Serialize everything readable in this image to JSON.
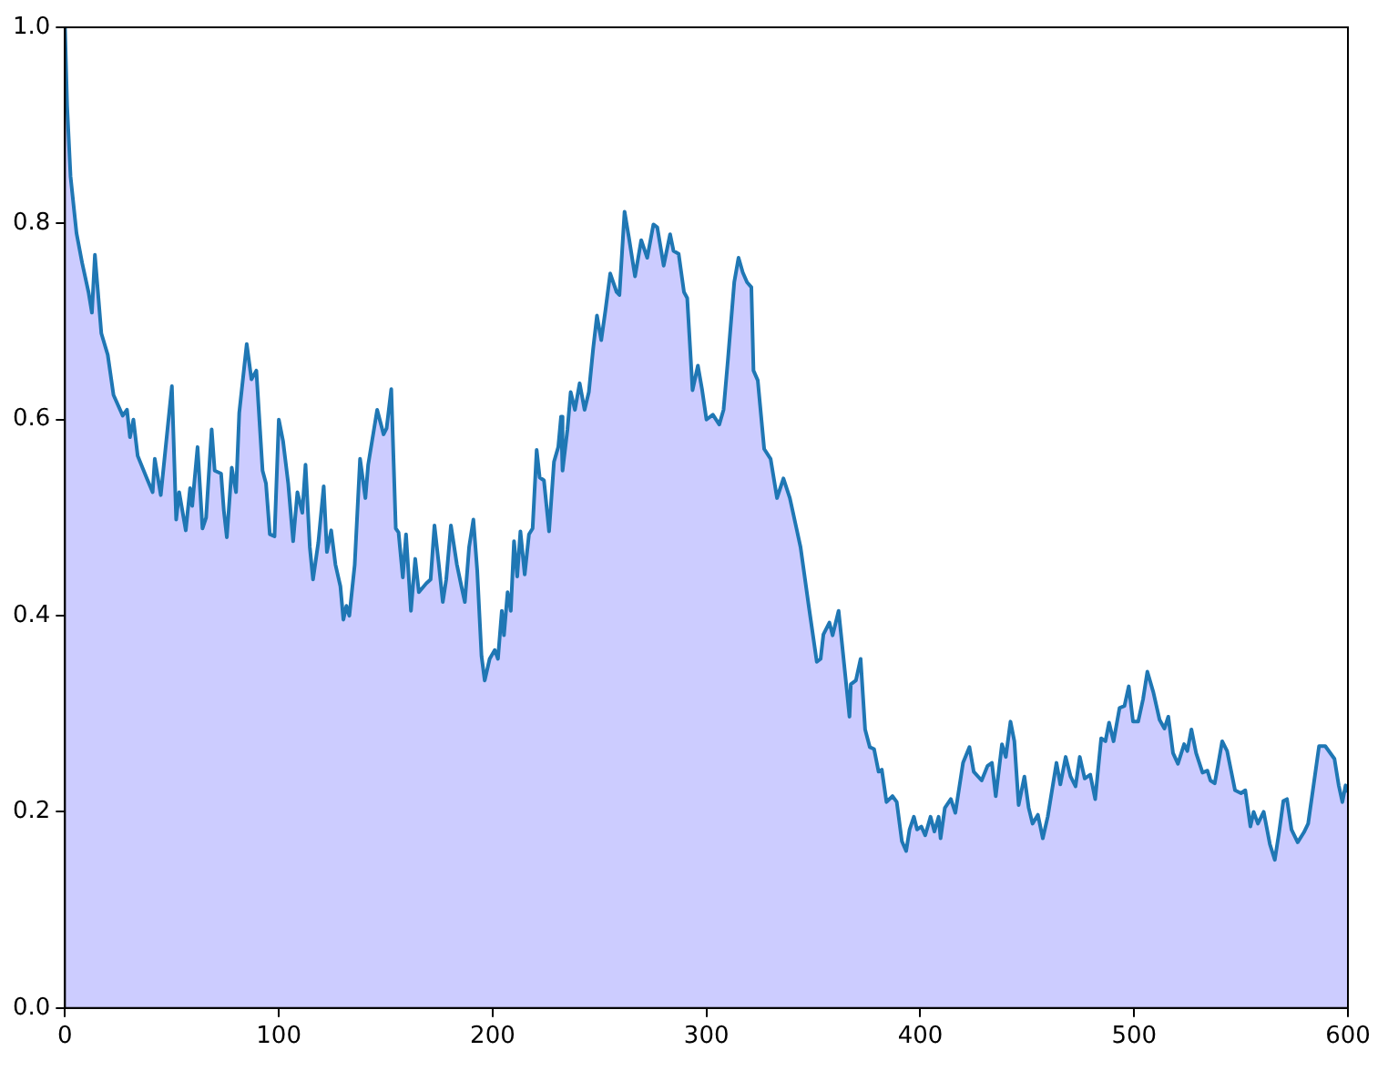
{
  "chart_data": {
    "type": "area",
    "xlim": [
      0,
      600
    ],
    "ylim": [
      0,
      1
    ],
    "xticks": [
      0,
      100,
      200,
      300,
      400,
      500,
      600
    ],
    "yticks": [
      {
        "value": 0,
        "label": "0.0"
      },
      {
        "value": 0.2,
        "label": "0.2"
      },
      {
        "value": 0.4,
        "label": "0.4"
      },
      {
        "value": 0.6,
        "label": "0.6"
      },
      {
        "value": 0.8,
        "label": "0.8"
      },
      {
        "value": 1,
        "label": "1.0"
      }
    ],
    "grid": false,
    "legend": false,
    "series": [
      {
        "color": "#1f77b4",
        "x": [
          0,
          1,
          2.6,
          5.4,
          8,
          11,
          12.6,
          14,
          17,
          20,
          22.7,
          27,
          29,
          30.4,
          32,
          34,
          38.5,
          41,
          42,
          44.8,
          50,
          52,
          53.4,
          56.5,
          58.5,
          59.5,
          62,
          64.3,
          66,
          68.6,
          70,
          73,
          74.3,
          75.7,
          78,
          80,
          81.5,
          85,
          87.2,
          89.5,
          92.4,
          94,
          95.8,
          98,
          100,
          102,
          104.4,
          106.7,
          108.7,
          111,
          112.5,
          114.5,
          116,
          118.5,
          121,
          122.5,
          124.5,
          126.5,
          128.8,
          130.2,
          131.6,
          133,
          135.5,
          138,
          140.5,
          141.8,
          146,
          149,
          150.4,
          152.6,
          154.7,
          156,
          158,
          159.5,
          161.8,
          163.8,
          165.5,
          169,
          171,
          172.8,
          174.7,
          176.7,
          178.3,
          180.5,
          183.3,
          185.4,
          187,
          189,
          191,
          192.8,
          194.8,
          196.3,
          198.6,
          201,
          202.5,
          204.3,
          205.3,
          207,
          208.5,
          210,
          211.5,
          213,
          215,
          217,
          218.7,
          220.6,
          222,
          224,
          226.4,
          228.7,
          230.7,
          232,
          232.7,
          235,
          236.5,
          238.5,
          240.7,
          243,
          245,
          247,
          248.8,
          250.8,
          252.8,
          255,
          258,
          259.3,
          261.7,
          263.7,
          266.6,
          269.5,
          272.3,
          275.2,
          277,
          280,
          283,
          284.6,
          287,
          289.5,
          291,
          293.5,
          296,
          298,
          300,
          303,
          306,
          308,
          310,
          313,
          315,
          317,
          319,
          321,
          322,
          324,
          327,
          330,
          333,
          336,
          339,
          342,
          344,
          347.9,
          351.6,
          353.4,
          354.7,
          357.5,
          359,
          361.8,
          363,
          365.6,
          366.9,
          367.5,
          369.9,
          372.1,
          374.2,
          376.4,
          378.4,
          380.5,
          382,
          384.2,
          387,
          389,
          391.4,
          393.4,
          395,
          397,
          398.5,
          400.5,
          402.3,
          404.8,
          406.6,
          408.6,
          409.5,
          411.5,
          414.3,
          416.4,
          420,
          423,
          425,
          428.7,
          431.5,
          433.5,
          435.3,
          438.2,
          440,
          442.2,
          444,
          446,
          448.7,
          450.7,
          452.5,
          455,
          457.3,
          459.6,
          463.7,
          465.5,
          468,
          470.3,
          472.6,
          474.6,
          476.9,
          479.5,
          481.8,
          484.6,
          486.6,
          488.3,
          490.4,
          493.2,
          495.5,
          497.5,
          499.5,
          501.9,
          504.2,
          506.2,
          509,
          511.9,
          514.2,
          516,
          518.2,
          520.5,
          523.4,
          524.9,
          526.8,
          529,
          532,
          534.3,
          535.7,
          537.7,
          539.2,
          541.2,
          543.5,
          547.2,
          550,
          552,
          554.4,
          555.9,
          557.9,
          560.6,
          563.5,
          565.8,
          567.8,
          569.8,
          571.5,
          573.6,
          576.5,
          579.4,
          581.4,
          583.6,
          586.5,
          589.4,
          593.7,
          595.7,
          597.4,
          598.9,
          600
        ],
        "values": [
          1.0,
          0.92,
          0.848,
          0.79,
          0.76,
          0.73,
          0.709,
          0.768,
          0.688,
          0.666,
          0.625,
          0.604,
          0.61,
          0.582,
          0.6,
          0.563,
          0.539,
          0.526,
          0.56,
          0.523,
          0.634,
          0.498,
          0.526,
          0.487,
          0.53,
          0.512,
          0.572,
          0.489,
          0.5,
          0.59,
          0.548,
          0.545,
          0.507,
          0.48,
          0.551,
          0.526,
          0.607,
          0.677,
          0.641,
          0.65,
          0.548,
          0.535,
          0.483,
          0.481,
          0.6,
          0.578,
          0.535,
          0.476,
          0.526,
          0.505,
          0.554,
          0.47,
          0.437,
          0.475,
          0.532,
          0.465,
          0.487,
          0.452,
          0.43,
          0.396,
          0.41,
          0.4,
          0.452,
          0.56,
          0.52,
          0.554,
          0.61,
          0.585,
          0.591,
          0.631,
          0.489,
          0.485,
          0.439,
          0.483,
          0.405,
          0.458,
          0.424,
          0.433,
          0.437,
          0.492,
          0.455,
          0.414,
          0.437,
          0.492,
          0.452,
          0.43,
          0.414,
          0.47,
          0.498,
          0.446,
          0.359,
          0.334,
          0.356,
          0.365,
          0.356,
          0.405,
          0.38,
          0.424,
          0.405,
          0.476,
          0.44,
          0.486,
          0.442,
          0.483,
          0.489,
          0.569,
          0.541,
          0.538,
          0.486,
          0.557,
          0.572,
          0.603,
          0.548,
          0.59,
          0.628,
          0.61,
          0.637,
          0.61,
          0.628,
          0.672,
          0.706,
          0.681,
          0.712,
          0.749,
          0.73,
          0.727,
          0.812,
          0.786,
          0.746,
          0.783,
          0.765,
          0.799,
          0.796,
          0.757,
          0.789,
          0.772,
          0.769,
          0.73,
          0.724,
          0.63,
          0.655,
          0.63,
          0.6,
          0.605,
          0.595,
          0.61,
          0.66,
          0.74,
          0.765,
          0.75,
          0.74,
          0.735,
          0.65,
          0.64,
          0.57,
          0.56,
          0.52,
          0.54,
          0.52,
          0.49,
          0.47,
          0.409,
          0.353,
          0.356,
          0.381,
          0.393,
          0.38,
          0.405,
          0.38,
          0.325,
          0.297,
          0.33,
          0.334,
          0.356,
          0.284,
          0.266,
          0.264,
          0.241,
          0.243,
          0.21,
          0.216,
          0.21,
          0.17,
          0.16,
          0.182,
          0.195,
          0.182,
          0.185,
          0.176,
          0.195,
          0.18,
          0.195,
          0.173,
          0.204,
          0.213,
          0.199,
          0.25,
          0.266,
          0.241,
          0.232,
          0.247,
          0.25,
          0.216,
          0.269,
          0.256,
          0.292,
          0.272,
          0.207,
          0.236,
          0.204,
          0.188,
          0.197,
          0.173,
          0.195,
          0.25,
          0.228,
          0.256,
          0.236,
          0.226,
          0.256,
          0.234,
          0.238,
          0.213,
          0.275,
          0.272,
          0.291,
          0.272,
          0.306,
          0.308,
          0.328,
          0.292,
          0.292,
          0.315,
          0.343,
          0.322,
          0.294,
          0.285,
          0.297,
          0.26,
          0.249,
          0.269,
          0.262,
          0.284,
          0.26,
          0.24,
          0.242,
          0.232,
          0.229,
          0.247,
          0.272,
          0.262,
          0.222,
          0.219,
          0.222,
          0.185,
          0.2,
          0.188,
          0.2,
          0.167,
          0.151,
          0.179,
          0.211,
          0.213,
          0.182,
          0.169,
          0.179,
          0.188,
          0.222,
          0.267,
          0.267,
          0.254,
          0.227,
          0.21,
          0.227,
          0.22
        ]
      }
    ]
  }
}
